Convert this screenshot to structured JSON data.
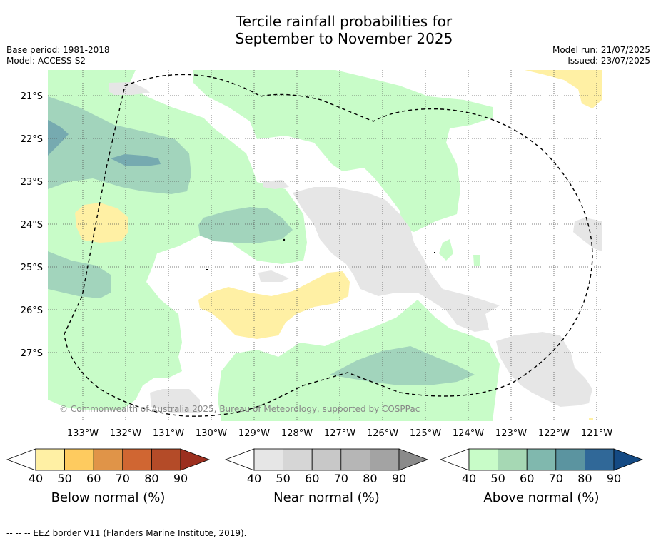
{
  "title_line1": "Tercile rainfall probabilities for",
  "title_line2": "September to November 2025",
  "base_period": "Base period: 1981-2018",
  "model": "Model: ACCESS-S2",
  "model_run": "Model run: 21/07/2025",
  "issued": "Issued: 23/07/2025",
  "latitudes": [
    "21°S",
    "22°S",
    "23°S",
    "24°S",
    "25°S",
    "26°S",
    "27°S"
  ],
  "longitudes": [
    "133°W",
    "132°W",
    "131°W",
    "130°W",
    "129°W",
    "128°W",
    "127°W",
    "126°W",
    "125°W",
    "124°W",
    "123°W",
    "122°W",
    "121°W"
  ],
  "copyright": "© Commonwealth of Australia 2025, Bureau of Meteorology, supported by COSPPac",
  "colorbars": [
    {
      "title": "Below normal (%)",
      "ticks": [
        "40",
        "50",
        "60",
        "70",
        "80",
        "90"
      ],
      "colors": [
        "#fff0a4",
        "#fecb5f",
        "#e09448",
        "#d06632",
        "#b44b28",
        "#9c2f1f"
      ]
    },
    {
      "title": "Near normal (%)",
      "ticks": [
        "40",
        "50",
        "60",
        "70",
        "80",
        "90"
      ],
      "colors": [
        "#e6e6e6",
        "#d6d6d6",
        "#c8c8c8",
        "#b6b6b6",
        "#a3a3a3",
        "#8a8a8a"
      ]
    },
    {
      "title": "Above normal (%)",
      "ticks": [
        "40",
        "50",
        "60",
        "70",
        "80",
        "90"
      ],
      "colors": [
        "#c8fcc8",
        "#a6d8b4",
        "#80b8ae",
        "#5b94a0",
        "#306898",
        "#144a84"
      ]
    }
  ],
  "footer": "--  --  -- EEZ border V11 (Flanders Marine Institute, 2019)."
}
